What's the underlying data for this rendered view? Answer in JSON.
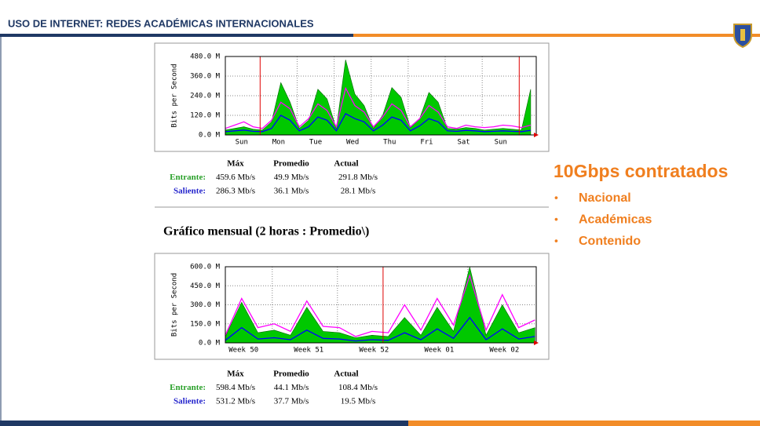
{
  "header": {
    "title": "USO DE INTERNET: REDES ACADÉMICAS INTERNACIONALES"
  },
  "chart_data": [
    {
      "type": "line",
      "ylabel": "Bits per Second",
      "xlim": [
        0,
        8.4
      ],
      "ylim": [
        0,
        480
      ],
      "yticks": [
        {
          "value": 0,
          "label": "0.0 M"
        },
        {
          "value": 120,
          "label": "120.0 M"
        },
        {
          "value": 240,
          "label": "240.0 M"
        },
        {
          "value": 360,
          "label": "360.0 M"
        },
        {
          "value": 480,
          "label": "480.0 M"
        }
      ],
      "xticks": [
        {
          "value": 0.44,
          "label": "Sun"
        },
        {
          "value": 1.44,
          "label": "Mon"
        },
        {
          "value": 2.44,
          "label": "Tue"
        },
        {
          "value": 3.44,
          "label": "Wed"
        },
        {
          "value": 4.44,
          "label": "Thu"
        },
        {
          "value": 5.44,
          "label": "Fri"
        },
        {
          "value": 6.44,
          "label": "Sat"
        },
        {
          "value": 7.44,
          "label": "Sun"
        }
      ],
      "vgrid": [
        1.94,
        2.94,
        3.94,
        4.94,
        5.94,
        6.94
      ],
      "period_lines": [
        0.94,
        7.94
      ],
      "x": [
        0,
        0.25,
        0.5,
        0.75,
        1,
        1.25,
        1.5,
        1.75,
        2,
        2.25,
        2.5,
        2.75,
        3,
        3.25,
        3.5,
        3.75,
        4,
        4.25,
        4.5,
        4.75,
        5,
        5.25,
        5.5,
        5.75,
        6,
        6.25,
        6.5,
        6.75,
        7,
        7.25,
        7.5,
        7.75,
        8,
        8.25
      ],
      "series": [
        {
          "color": "#00c800",
          "fill": true,
          "values": [
            30,
            40,
            50,
            35,
            30,
            80,
            320,
            200,
            40,
            90,
            280,
            220,
            40,
            460,
            250,
            180,
            40,
            120,
            290,
            230,
            45,
            100,
            260,
            200,
            40,
            35,
            45,
            40,
            30,
            35,
            40,
            35,
            30,
            280
          ]
        },
        {
          "color": "#ff00ff",
          "fill": false,
          "values": [
            40,
            60,
            80,
            50,
            40,
            90,
            200,
            160,
            50,
            100,
            190,
            150,
            50,
            286,
            180,
            140,
            50,
            110,
            190,
            150,
            50,
            100,
            180,
            140,
            50,
            40,
            60,
            50,
            45,
            50,
            60,
            55,
            45,
            60
          ]
        },
        {
          "color": "#0000ff",
          "fill": false,
          "values": [
            20,
            25,
            30,
            22,
            20,
            40,
            120,
            90,
            25,
            50,
            110,
            90,
            25,
            130,
            100,
            80,
            25,
            60,
            110,
            90,
            25,
            55,
            100,
            80,
            25,
            22,
            28,
            25,
            20,
            22,
            25,
            22,
            20,
            28
          ]
        }
      ]
    },
    {
      "type": "line",
      "ylabel": "Bits per Second",
      "xlim": [
        0,
        4.77
      ],
      "ylim": [
        0,
        600
      ],
      "yticks": [
        {
          "value": 0,
          "label": "0.0 M"
        },
        {
          "value": 150,
          "label": "150.0 M"
        },
        {
          "value": 300,
          "label": "300.0 M"
        },
        {
          "value": 450,
          "label": "450.0 M"
        },
        {
          "value": 600,
          "label": "600.0 M"
        }
      ],
      "xticks": [
        {
          "value": 0.28,
          "label": "Week 50"
        },
        {
          "value": 1.28,
          "label": "Week 51"
        },
        {
          "value": 2.28,
          "label": "Week 52"
        },
        {
          "value": 3.28,
          "label": "Week 01"
        },
        {
          "value": 4.28,
          "label": "Week 02"
        }
      ],
      "vgrid": [
        0.72,
        1.72,
        3.72
      ],
      "period_lines": [
        2.42
      ],
      "x": [
        0,
        0.25,
        0.5,
        0.75,
        1,
        1.25,
        1.5,
        1.75,
        2,
        2.25,
        2.5,
        2.75,
        3,
        3.25,
        3.5,
        3.75,
        4,
        4.25,
        4.5,
        4.75
      ],
      "series": [
        {
          "color": "#00c800",
          "fill": true,
          "values": [
            50,
            320,
            80,
            100,
            60,
            280,
            90,
            80,
            40,
            60,
            50,
            200,
            60,
            280,
            90,
            598,
            60,
            300,
            80,
            120
          ]
        },
        {
          "color": "#ff00ff",
          "fill": false,
          "values": [
            60,
            350,
            120,
            150,
            90,
            330,
            130,
            120,
            50,
            90,
            80,
            300,
            100,
            350,
            140,
            531,
            100,
            380,
            120,
            180
          ]
        },
        {
          "color": "#0000ff",
          "fill": false,
          "values": [
            20,
            120,
            30,
            40,
            25,
            100,
            35,
            30,
            15,
            25,
            20,
            80,
            25,
            110,
            35,
            200,
            25,
            110,
            30,
            50
          ]
        }
      ]
    }
  ],
  "stats": [
    {
      "headers": [
        "Máx",
        "Promedio",
        "Actual"
      ],
      "rows": [
        [
          "Entrante:",
          "459.6 Mb/s",
          "49.9 Mb/s",
          "291.8 Mb/s"
        ],
        [
          "Saliente:",
          "286.3 Mb/s",
          "36.1 Mb/s",
          "28.1 Mb/s"
        ]
      ]
    },
    {
      "headers": [
        "Máx",
        "Promedio",
        "Actual"
      ],
      "rows": [
        [
          "Entrante:",
          "598.4 Mb/s",
          "44.1 Mb/s",
          "108.4 Mb/s"
        ],
        [
          "Saliente:",
          "531.2 Mb/s",
          "37.7 Mb/s",
          "19.5 Mb/s"
        ]
      ]
    }
  ],
  "section_title": "Gráfico mensual (2 horas : Promedio\\)",
  "sidebar": {
    "heading": "10Gbps contratados",
    "bullets": [
      "Nacional",
      "Académicas",
      "Contenido"
    ]
  }
}
